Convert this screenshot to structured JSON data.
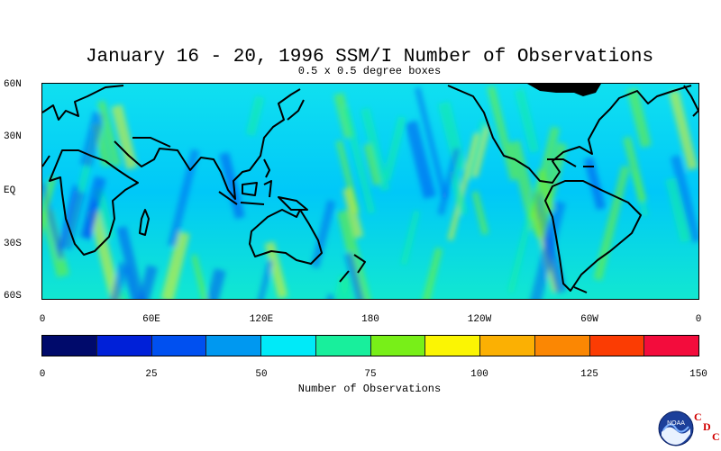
{
  "title": "January 16 - 20, 1996 SSM/I Number of Observations",
  "subtitle": "0.5 x 0.5 degree boxes",
  "map": {
    "lat_labels": [
      "60N",
      "30N",
      "EQ",
      "30S",
      "60S"
    ],
    "lon_labels": [
      "0",
      "60E",
      "120E",
      "180",
      "120W",
      "60W",
      "0"
    ]
  },
  "colorbar": {
    "label": "Number of Observations",
    "tick_labels": [
      "0",
      "25",
      "50",
      "75",
      "100",
      "125",
      "150"
    ],
    "colors": [
      "#000a6b",
      "#0020d8",
      "#0050f0",
      "#0098f0",
      "#00eaf8",
      "#18ef9c",
      "#78ef18",
      "#fbf503",
      "#fbb003",
      "#fb8703",
      "#fb3c03",
      "#f30c3c"
    ]
  },
  "logo": {
    "agency_text": "NOAA",
    "letters": [
      "C",
      "D",
      "C"
    ]
  }
}
